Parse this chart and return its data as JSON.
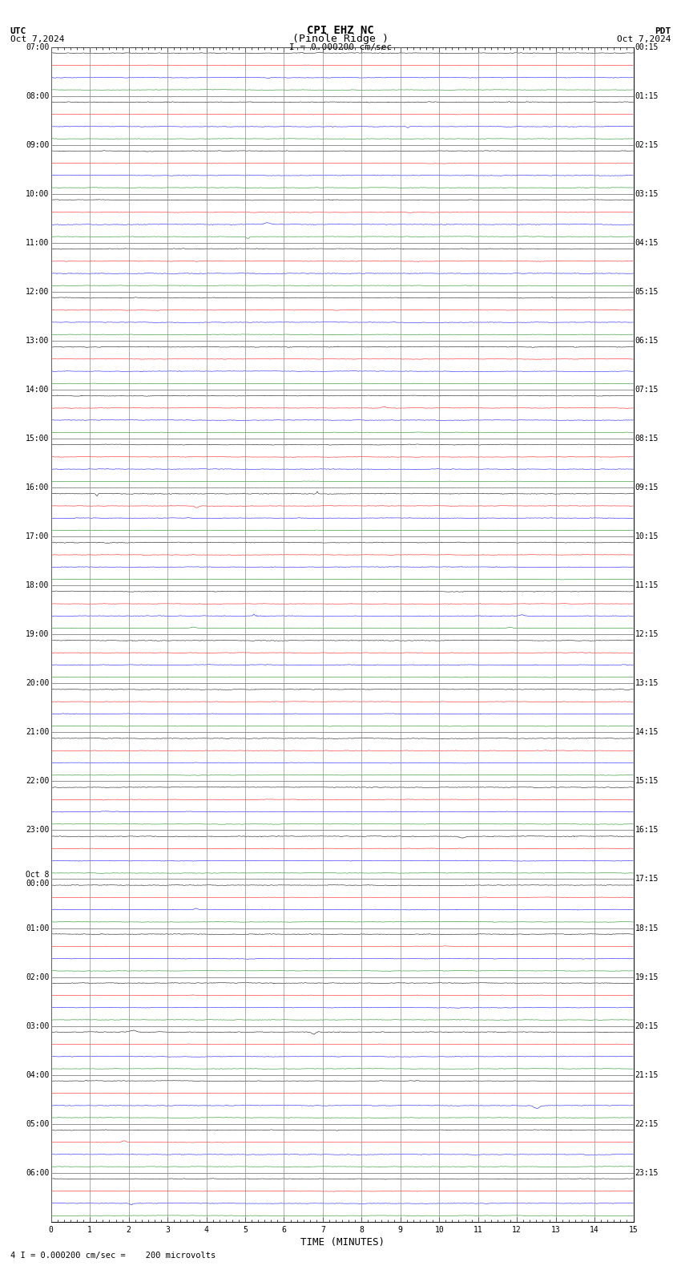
{
  "title_line1": "CPI EHZ NC",
  "title_line2": "(Pinole Ridge )",
  "scale_label": "I = 0.000200 cm/sec",
  "bottom_label": "4 I = 0.000200 cm/sec =    200 microvolts",
  "utc_label": "UTC",
  "utc_date": "Oct 7,2024",
  "pdt_label": "PDT",
  "pdt_date": "Oct 7,2024",
  "xlabel": "TIME (MINUTES)",
  "left_times": [
    "07:00",
    "08:00",
    "09:00",
    "10:00",
    "11:00",
    "12:00",
    "13:00",
    "14:00",
    "15:00",
    "16:00",
    "17:00",
    "18:00",
    "19:00",
    "20:00",
    "21:00",
    "22:00",
    "23:00",
    "Oct 8\n00:00",
    "01:00",
    "02:00",
    "03:00",
    "04:00",
    "05:00",
    "06:00"
  ],
  "right_times": [
    "00:15",
    "01:15",
    "02:15",
    "03:15",
    "04:15",
    "05:15",
    "06:15",
    "07:15",
    "08:15",
    "09:15",
    "10:15",
    "11:15",
    "12:15",
    "13:15",
    "14:15",
    "15:15",
    "16:15",
    "17:15",
    "18:15",
    "19:15",
    "20:15",
    "21:15",
    "22:15",
    "23:15"
  ],
  "colors": [
    "black",
    "red",
    "blue",
    "green"
  ],
  "n_groups": 24,
  "n_traces_per_group": 4,
  "background_color": "white",
  "grid_color": "#aaaaaa",
  "noise_amp": 0.012,
  "xmin": 0,
  "xmax": 15,
  "title_fontsize": 10,
  "label_fontsize": 8,
  "tick_fontsize": 7
}
